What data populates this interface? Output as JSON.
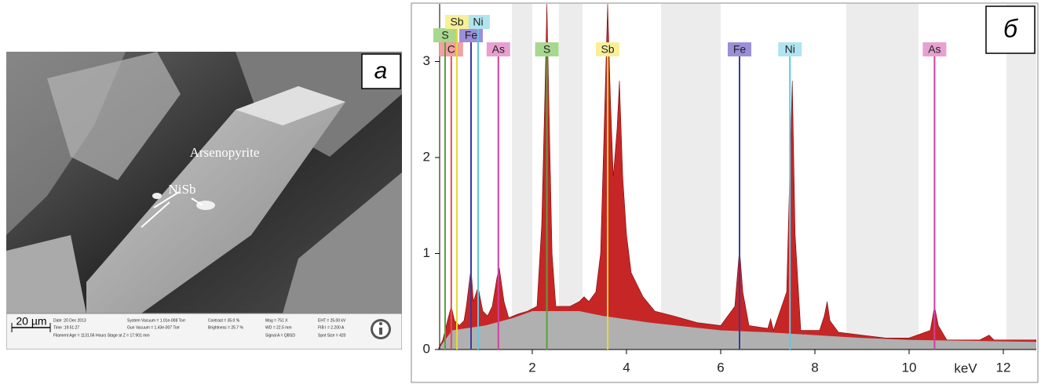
{
  "image_panel": {
    "panel_label": "a",
    "mineral_label": "Arsenopyrite",
    "inclusion_label": "NiSb",
    "scale_bar": "20 µm",
    "info": [
      "Date :20 Dec 2013",
      "Time :19:51:27",
      "Filament Age = 1131.56 Hours Stage at Z = 17.901 mm",
      "System Vacuum = 1.01e-008 Torr",
      "Gun Vacuum = 1.43e-007 Torr",
      "Contrast = 35.0 %",
      "Brightness = 25.7 %",
      "Mag = 751 X",
      "WD = 22.5 mm",
      "Signal A = QBSD",
      "EHT = 25.00 kV",
      "FIB I = 2.200 A",
      "Spot Size = 420"
    ]
  },
  "chart_data": {
    "type": "area",
    "panel_label": "б",
    "x_label": "keV",
    "xlim": [
      0,
      12.7
    ],
    "ylim": [
      0,
      3.6
    ],
    "xticks": [
      2,
      4,
      6,
      8,
      10,
      12
    ],
    "yticks": [
      0,
      1,
      2,
      3
    ],
    "series": [
      {
        "color": "#b0b0b0",
        "x": [
          0,
          0.3,
          1.0,
          1.6,
          2.0,
          3.0,
          3.5,
          4.5,
          6.0,
          7.0,
          8.0,
          9.0,
          10.0,
          12.7
        ],
        "values": [
          0,
          0.2,
          0.25,
          0.33,
          0.4,
          0.4,
          0.35,
          0.28,
          0.2,
          0.18,
          0.15,
          0.12,
          0.1,
          0.08
        ]
      },
      {
        "color": "#c41a1a",
        "x": [
          0.0,
          0.1,
          0.2,
          0.28,
          0.35,
          0.45,
          0.55,
          0.6,
          0.7,
          0.75,
          0.85,
          0.95,
          1.05,
          1.15,
          1.25,
          1.3,
          1.4,
          1.5,
          1.7,
          1.9,
          2.1,
          2.2,
          2.27,
          2.31,
          2.36,
          2.42,
          2.5,
          2.8,
          3.0,
          3.1,
          3.2,
          3.35,
          3.45,
          3.52,
          3.6,
          3.66,
          3.72,
          3.8,
          3.85,
          3.92,
          4.0,
          4.1,
          4.2,
          4.35,
          4.6,
          5.0,
          5.5,
          6.0,
          6.3,
          6.4,
          6.47,
          6.6,
          7.0,
          7.06,
          7.12,
          7.4,
          7.47,
          7.52,
          7.58,
          7.7,
          8.1,
          8.2,
          8.26,
          8.32,
          8.5,
          9.0,
          9.5,
          10.0,
          10.45,
          10.54,
          10.62,
          10.8,
          11.5,
          11.7,
          11.8,
          12.7
        ],
        "values": [
          0,
          0.1,
          0.3,
          0.45,
          0.3,
          0.25,
          0.3,
          0.45,
          0.85,
          0.5,
          0.65,
          0.4,
          0.35,
          0.45,
          0.75,
          0.85,
          0.5,
          0.33,
          0.37,
          0.4,
          0.45,
          1.3,
          2.7,
          3.6,
          2.4,
          1.0,
          0.45,
          0.45,
          0.5,
          0.55,
          0.5,
          0.6,
          1.0,
          2.2,
          3.6,
          2.6,
          1.8,
          2.3,
          2.8,
          1.8,
          1.2,
          0.8,
          0.7,
          0.55,
          0.4,
          0.35,
          0.28,
          0.25,
          0.45,
          1.05,
          0.6,
          0.25,
          0.22,
          0.32,
          0.2,
          0.6,
          1.9,
          2.8,
          1.2,
          0.2,
          0.2,
          0.35,
          0.5,
          0.3,
          0.18,
          0.15,
          0.12,
          0.12,
          0.2,
          0.45,
          0.25,
          0.1,
          0.1,
          0.15,
          0.1,
          0.1
        ]
      }
    ],
    "element_lines": [
      {
        "label": "C",
        "x": 0.28,
        "color": "#e05050",
        "label_color": "#f2a0a0"
      },
      {
        "label": "Fe",
        "x": 0.7,
        "color": "#3a3aa0",
        "label_color": "#9b8fd8"
      },
      {
        "label": "As",
        "x": 1.28,
        "color": "#d040a0",
        "label_color": "#e8a0d0"
      },
      {
        "label": "S",
        "x": 2.31,
        "color": "#5aa040",
        "label_color": "#a8d890"
      },
      {
        "label": "Sb",
        "x": 3.6,
        "color": "#e8d830",
        "label_color": "#f8f098"
      },
      {
        "label": "Fe",
        "x": 6.4,
        "color": "#3a3aa0",
        "label_color": "#9b8fd8"
      },
      {
        "label": "Ni",
        "x": 7.47,
        "color": "#60c8e0",
        "label_color": "#b0e4f0"
      },
      {
        "label": "As",
        "x": 10.54,
        "color": "#d040a0",
        "label_color": "#e8a0d0"
      },
      {
        "label": "S",
        "x": 0.15,
        "color": "#5aa040",
        "label_color": "#a8d890"
      },
      {
        "label": "Ni",
        "x": 0.85,
        "color": "#60c8e0",
        "label_color": "#b0e4f0"
      },
      {
        "label": "Sb",
        "x": 0.4,
        "color": "#e8d830",
        "label_color": "#f8f098"
      }
    ]
  }
}
